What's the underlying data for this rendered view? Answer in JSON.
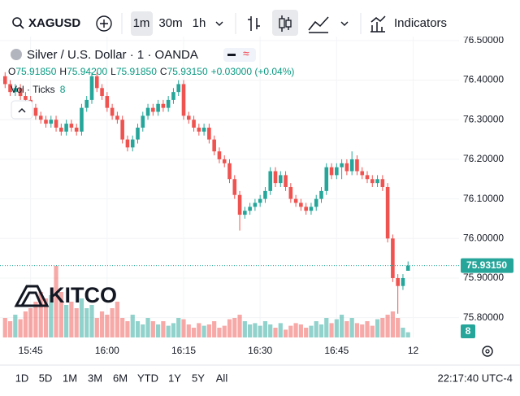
{
  "toolbar": {
    "symbol": "XAGUSD",
    "intervals": [
      "1m",
      "30m",
      "1h"
    ],
    "indicators": "Indicators"
  },
  "chart_data": {
    "type": "candlestick",
    "title": "Silver / U.S. Dollar · 1 · OANDA",
    "status": {
      "open_label": "O",
      "open": "75.91850",
      "high_label": "H",
      "high": "75.94200",
      "low_label": "L",
      "low": "75.91850",
      "close_label": "C",
      "close": "75.93150",
      "change": "+0.03000 (+0.04%)"
    },
    "volume_label": "Vol · Ticks",
    "x": [
      -5,
      -4,
      -3,
      -2,
      -1,
      0,
      1,
      2,
      3,
      4,
      5,
      6,
      7,
      8,
      9,
      10,
      11,
      12,
      13,
      14,
      15,
      16,
      17,
      18,
      19,
      20,
      21,
      22,
      23,
      24,
      25,
      26,
      27,
      28,
      29,
      30,
      31,
      32,
      33,
      34,
      35,
      36,
      37,
      38,
      39,
      40,
      41,
      42,
      43,
      44,
      45,
      46,
      47,
      48,
      49,
      50,
      51,
      52,
      53,
      54,
      55,
      56,
      57,
      58,
      59,
      60,
      61,
      62,
      63,
      64,
      65,
      66,
      67,
      68,
      69,
      70,
      71,
      72,
      73,
      74
    ],
    "open": [
      76.41,
      76.39,
      76.37,
      76.38,
      76.36,
      76.35,
      76.33,
      76.31,
      76.3,
      76.29,
      76.3,
      76.28,
      76.27,
      76.29,
      76.28,
      76.27,
      76.33,
      76.35,
      76.41,
      76.38,
      76.36,
      76.33,
      76.31,
      76.3,
      76.25,
      76.23,
      76.25,
      76.28,
      76.31,
      76.33,
      76.32,
      76.34,
      76.33,
      76.35,
      76.37,
      76.39,
      76.31,
      76.3,
      76.28,
      76.27,
      76.28,
      76.25,
      76.22,
      76.2,
      76.19,
      76.15,
      76.11,
      76.06,
      76.07,
      76.08,
      76.09,
      76.1,
      76.12,
      76.17,
      76.14,
      76.16,
      76.13,
      76.1,
      76.09,
      76.08,
      76.07,
      76.08,
      76.1,
      76.12,
      76.18,
      76.16,
      76.18,
      76.19,
      76.17,
      76.2,
      76.17,
      76.16,
      76.15,
      76.14,
      76.15,
      76.13,
      76.0,
      75.9,
      75.88,
      75.9185
    ],
    "high": [
      76.42,
      76.4,
      76.39,
      76.39,
      76.37,
      76.36,
      76.34,
      76.32,
      76.31,
      76.31,
      76.31,
      76.29,
      76.3,
      76.3,
      76.29,
      76.34,
      76.36,
      76.42,
      76.42,
      76.39,
      76.37,
      76.34,
      76.32,
      76.31,
      76.26,
      76.26,
      76.29,
      76.32,
      76.34,
      76.34,
      76.35,
      76.35,
      76.36,
      76.38,
      76.4,
      76.4,
      76.32,
      76.31,
      76.29,
      76.29,
      76.29,
      76.26,
      76.23,
      76.21,
      76.2,
      76.16,
      76.12,
      76.08,
      76.09,
      76.1,
      76.11,
      76.13,
      76.18,
      76.18,
      76.17,
      76.17,
      76.14,
      76.11,
      76.1,
      76.09,
      76.09,
      76.11,
      76.13,
      76.19,
      76.19,
      76.19,
      76.2,
      76.2,
      76.22,
      76.21,
      76.18,
      76.17,
      76.16,
      76.16,
      76.16,
      76.14,
      76.01,
      75.91,
      75.91,
      75.942
    ],
    "low": [
      76.38,
      76.36,
      76.36,
      76.35,
      76.34,
      76.32,
      76.3,
      76.29,
      76.28,
      76.28,
      76.27,
      76.26,
      76.26,
      76.27,
      76.26,
      76.26,
      76.32,
      76.34,
      76.37,
      76.35,
      76.32,
      76.3,
      76.29,
      76.24,
      76.22,
      76.22,
      76.24,
      76.27,
      76.3,
      76.31,
      76.31,
      76.32,
      76.32,
      76.34,
      76.36,
      76.3,
      76.29,
      76.27,
      76.26,
      76.26,
      76.24,
      76.21,
      76.19,
      76.18,
      76.14,
      76.1,
      76.02,
      76.05,
      76.06,
      76.07,
      76.08,
      76.09,
      76.11,
      76.13,
      76.13,
      76.12,
      76.09,
      76.08,
      76.07,
      76.06,
      76.06,
      76.07,
      76.09,
      76.11,
      76.15,
      76.15,
      76.15,
      76.16,
      76.16,
      76.16,
      76.15,
      76.14,
      76.13,
      76.13,
      76.12,
      75.99,
      75.89,
      75.81,
      75.87,
      75.9185
    ],
    "close": [
      76.39,
      76.37,
      76.38,
      76.36,
      76.35,
      76.33,
      76.31,
      76.3,
      76.29,
      76.3,
      76.28,
      76.27,
      76.29,
      76.28,
      76.27,
      76.33,
      76.35,
      76.41,
      76.38,
      76.36,
      76.33,
      76.31,
      76.3,
      76.25,
      76.23,
      76.25,
      76.28,
      76.31,
      76.33,
      76.32,
      76.34,
      76.33,
      76.35,
      76.37,
      76.39,
      76.31,
      76.3,
      76.28,
      76.27,
      76.28,
      76.25,
      76.22,
      76.2,
      76.19,
      76.15,
      76.11,
      76.06,
      76.07,
      76.08,
      76.09,
      76.1,
      76.12,
      76.17,
      76.14,
      76.16,
      76.13,
      76.1,
      76.09,
      76.08,
      76.07,
      76.08,
      76.1,
      76.12,
      76.18,
      76.16,
      76.18,
      76.19,
      76.17,
      76.2,
      76.17,
      76.16,
      76.15,
      76.14,
      76.15,
      76.13,
      76.0,
      75.9,
      75.88,
      75.9,
      75.9315
    ],
    "volume": [
      30,
      25,
      35,
      28,
      40,
      45,
      55,
      70,
      60,
      65,
      110,
      70,
      50,
      55,
      45,
      60,
      45,
      50,
      30,
      40,
      35,
      45,
      55,
      30,
      25,
      35,
      25,
      20,
      30,
      25,
      20,
      25,
      18,
      22,
      30,
      28,
      20,
      15,
      22,
      18,
      20,
      25,
      15,
      18,
      28,
      30,
      35,
      25,
      20,
      22,
      18,
      25,
      20,
      15,
      22,
      12,
      18,
      22,
      20,
      15,
      18,
      25,
      20,
      30,
      22,
      28,
      35,
      25,
      30,
      22,
      20,
      25,
      18,
      28,
      30,
      35,
      40,
      30,
      15,
      8
    ],
    "vlim": [
      0,
      150
    ],
    "up_color": "#26a69a",
    "down_color": "#ef5350",
    "xlim": [
      -6,
      84
    ],
    "xticks": [
      {
        "value": 0,
        "label": "15:45"
      },
      {
        "value": 15,
        "label": "16:00"
      },
      {
        "value": 30,
        "label": "16:15"
      },
      {
        "value": 45,
        "label": "16:30"
      },
      {
        "value": 60,
        "label": "16:45"
      },
      {
        "value": 75,
        "label": "12"
      }
    ],
    "ylim": [
      75.75,
      76.51
    ],
    "yticks": [
      {
        "value": 75.8,
        "label": "75.80000"
      },
      {
        "value": 75.9,
        "label": "75.90000"
      },
      {
        "value": 76.0,
        "label": "76.00000"
      },
      {
        "value": 76.1,
        "label": "76.10000"
      },
      {
        "value": 76.2,
        "label": "76.20000"
      },
      {
        "value": 76.3,
        "label": "76.30000"
      },
      {
        "value": 76.4,
        "label": "76.40000"
      },
      {
        "value": 76.5,
        "label": "76.50000"
      }
    ],
    "last_price_label": "75.93150",
    "watermark": "KITCO"
  },
  "range_bar": {
    "ranges": [
      "1D",
      "5D",
      "1M",
      "3M",
      "6M",
      "YTD",
      "1Y",
      "5Y",
      "All"
    ],
    "clock": "22:17:40 UTC-4"
  }
}
